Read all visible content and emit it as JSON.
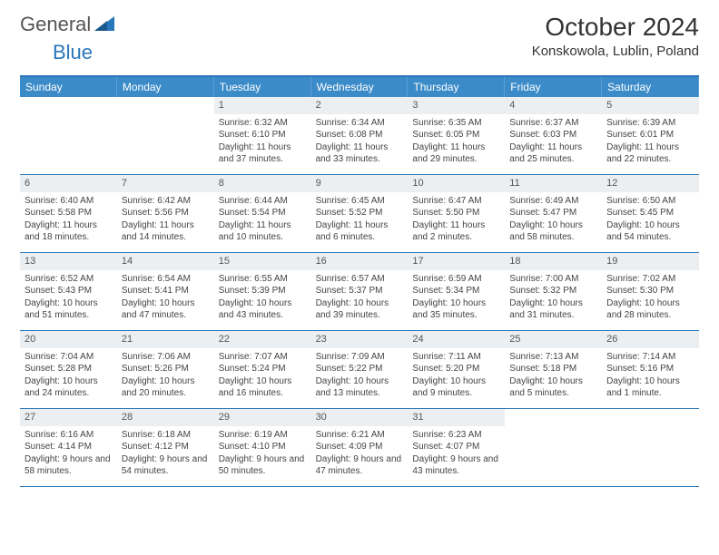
{
  "logo": {
    "text1": "General",
    "text2": "Blue"
  },
  "title": "October 2024",
  "location": "Konskowola, Lublin, Poland",
  "colors": {
    "header_bg": "#3b8bc9",
    "header_text": "#ffffff",
    "accent": "#2a77bb",
    "date_bar_bg": "#eceff1",
    "body_text": "#444444"
  },
  "day_headers": [
    "Sunday",
    "Monday",
    "Tuesday",
    "Wednesday",
    "Thursday",
    "Friday",
    "Saturday"
  ],
  "leading_blanks": 2,
  "days": [
    {
      "n": "1",
      "sr": "6:32 AM",
      "ss": "6:10 PM",
      "dl": "11 hours and 37 minutes."
    },
    {
      "n": "2",
      "sr": "6:34 AM",
      "ss": "6:08 PM",
      "dl": "11 hours and 33 minutes."
    },
    {
      "n": "3",
      "sr": "6:35 AM",
      "ss": "6:05 PM",
      "dl": "11 hours and 29 minutes."
    },
    {
      "n": "4",
      "sr": "6:37 AM",
      "ss": "6:03 PM",
      "dl": "11 hours and 25 minutes."
    },
    {
      "n": "5",
      "sr": "6:39 AM",
      "ss": "6:01 PM",
      "dl": "11 hours and 22 minutes."
    },
    {
      "n": "6",
      "sr": "6:40 AM",
      "ss": "5:58 PM",
      "dl": "11 hours and 18 minutes."
    },
    {
      "n": "7",
      "sr": "6:42 AM",
      "ss": "5:56 PM",
      "dl": "11 hours and 14 minutes."
    },
    {
      "n": "8",
      "sr": "6:44 AM",
      "ss": "5:54 PM",
      "dl": "11 hours and 10 minutes."
    },
    {
      "n": "9",
      "sr": "6:45 AM",
      "ss": "5:52 PM",
      "dl": "11 hours and 6 minutes."
    },
    {
      "n": "10",
      "sr": "6:47 AM",
      "ss": "5:50 PM",
      "dl": "11 hours and 2 minutes."
    },
    {
      "n": "11",
      "sr": "6:49 AM",
      "ss": "5:47 PM",
      "dl": "10 hours and 58 minutes."
    },
    {
      "n": "12",
      "sr": "6:50 AM",
      "ss": "5:45 PM",
      "dl": "10 hours and 54 minutes."
    },
    {
      "n": "13",
      "sr": "6:52 AM",
      "ss": "5:43 PM",
      "dl": "10 hours and 51 minutes."
    },
    {
      "n": "14",
      "sr": "6:54 AM",
      "ss": "5:41 PM",
      "dl": "10 hours and 47 minutes."
    },
    {
      "n": "15",
      "sr": "6:55 AM",
      "ss": "5:39 PM",
      "dl": "10 hours and 43 minutes."
    },
    {
      "n": "16",
      "sr": "6:57 AM",
      "ss": "5:37 PM",
      "dl": "10 hours and 39 minutes."
    },
    {
      "n": "17",
      "sr": "6:59 AM",
      "ss": "5:34 PM",
      "dl": "10 hours and 35 minutes."
    },
    {
      "n": "18",
      "sr": "7:00 AM",
      "ss": "5:32 PM",
      "dl": "10 hours and 31 minutes."
    },
    {
      "n": "19",
      "sr": "7:02 AM",
      "ss": "5:30 PM",
      "dl": "10 hours and 28 minutes."
    },
    {
      "n": "20",
      "sr": "7:04 AM",
      "ss": "5:28 PM",
      "dl": "10 hours and 24 minutes."
    },
    {
      "n": "21",
      "sr": "7:06 AM",
      "ss": "5:26 PM",
      "dl": "10 hours and 20 minutes."
    },
    {
      "n": "22",
      "sr": "7:07 AM",
      "ss": "5:24 PM",
      "dl": "10 hours and 16 minutes."
    },
    {
      "n": "23",
      "sr": "7:09 AM",
      "ss": "5:22 PM",
      "dl": "10 hours and 13 minutes."
    },
    {
      "n": "24",
      "sr": "7:11 AM",
      "ss": "5:20 PM",
      "dl": "10 hours and 9 minutes."
    },
    {
      "n": "25",
      "sr": "7:13 AM",
      "ss": "5:18 PM",
      "dl": "10 hours and 5 minutes."
    },
    {
      "n": "26",
      "sr": "7:14 AM",
      "ss": "5:16 PM",
      "dl": "10 hours and 1 minute."
    },
    {
      "n": "27",
      "sr": "6:16 AM",
      "ss": "4:14 PM",
      "dl": "9 hours and 58 minutes."
    },
    {
      "n": "28",
      "sr": "6:18 AM",
      "ss": "4:12 PM",
      "dl": "9 hours and 54 minutes."
    },
    {
      "n": "29",
      "sr": "6:19 AM",
      "ss": "4:10 PM",
      "dl": "9 hours and 50 minutes."
    },
    {
      "n": "30",
      "sr": "6:21 AM",
      "ss": "4:09 PM",
      "dl": "9 hours and 47 minutes."
    },
    {
      "n": "31",
      "sr": "6:23 AM",
      "ss": "4:07 PM",
      "dl": "9 hours and 43 minutes."
    }
  ],
  "labels": {
    "sunrise": "Sunrise:",
    "sunset": "Sunset:",
    "daylight": "Daylight:"
  }
}
